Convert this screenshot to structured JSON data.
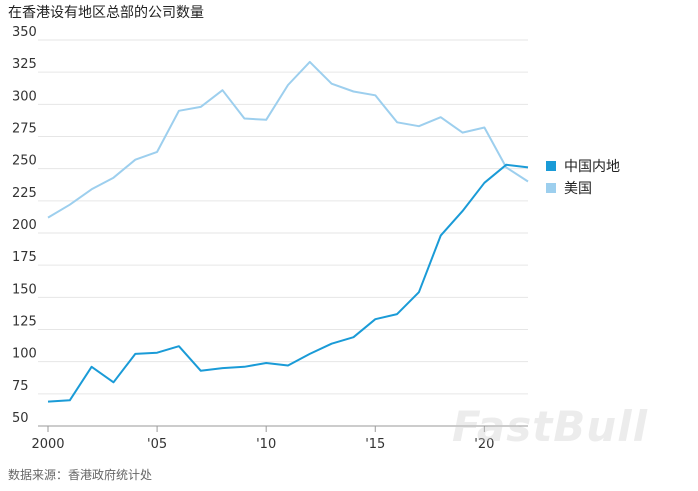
{
  "chart_data": {
    "type": "line",
    "title": "在香港设有地区总部的公司数量",
    "source": "数据来源：香港政府统计处",
    "x": [
      2000,
      2001,
      2002,
      2003,
      2004,
      2005,
      2006,
      2007,
      2008,
      2009,
      2010,
      2011,
      2012,
      2013,
      2014,
      2015,
      2016,
      2017,
      2018,
      2019,
      2020,
      2021,
      2022
    ],
    "xticks": [
      2000,
      2005,
      2010,
      2015,
      2020
    ],
    "xtick_labels": [
      "2000",
      "'05",
      "'10",
      "'15",
      "'20"
    ],
    "ylim": [
      50,
      350
    ],
    "yticks": [
      50,
      75,
      100,
      125,
      150,
      175,
      200,
      225,
      250,
      275,
      300,
      325,
      350
    ],
    "grid": true,
    "legend_position": "right",
    "series": [
      {
        "name": "中国内地",
        "color": "#1a9bd7",
        "values": [
          69,
          70,
          96,
          84,
          106,
          107,
          112,
          93,
          95,
          96,
          99,
          97,
          106,
          114,
          119,
          133,
          137,
          154,
          198,
          217,
          239,
          253,
          251
        ]
      },
      {
        "name": "美国",
        "color": "#9dcfee",
        "values": [
          212,
          222,
          234,
          243,
          257,
          263,
          295,
          298,
          311,
          289,
          288,
          315,
          333,
          316,
          310,
          307,
          286,
          283,
          290,
          278,
          282,
          251,
          240
        ]
      }
    ],
    "watermark": "FastBull"
  }
}
